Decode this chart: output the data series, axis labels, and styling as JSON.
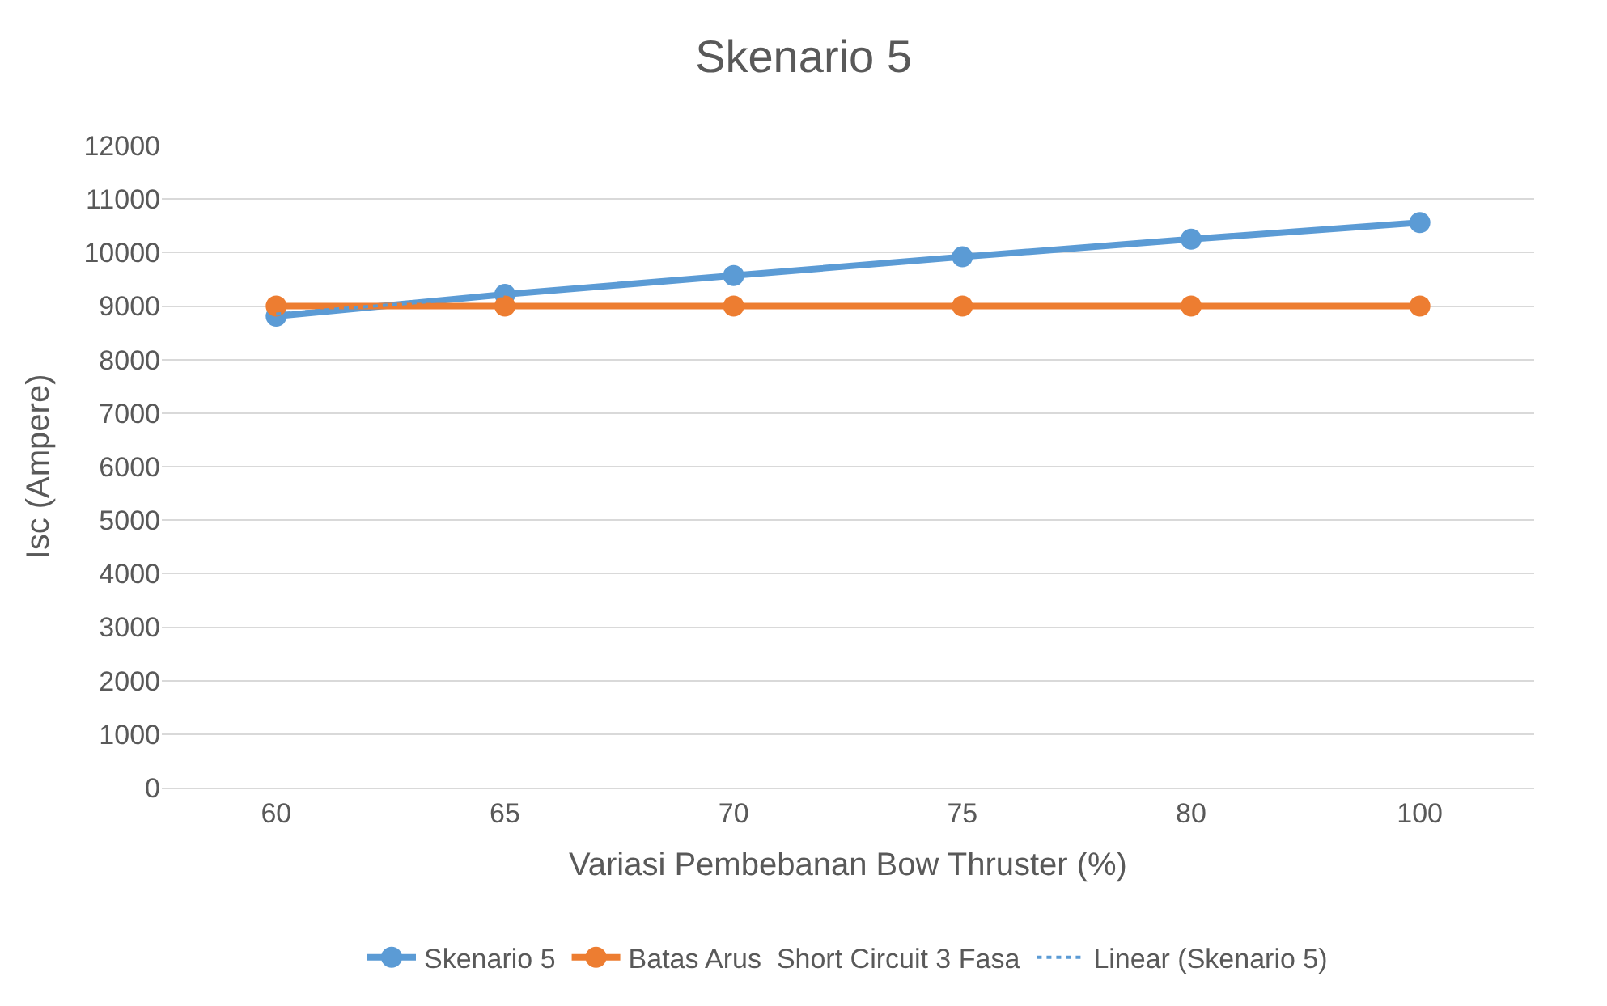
{
  "chart_data": {
    "type": "line",
    "title": "Skenario 5",
    "xlabel": "Variasi Pembebanan Bow Thruster (%)",
    "ylabel": "Isc (Ampere)",
    "categories": [
      "60",
      "65",
      "70",
      "75",
      "80",
      "100"
    ],
    "series": [
      {
        "name": "Skenario 5",
        "color": "#5b9bd5",
        "values": [
          8810,
          9220,
          9570,
          9920,
          10250,
          10560
        ],
        "marker": "circle",
        "line_style": "solid"
      },
      {
        "name": "Batas Arus  Short Circuit 3 Fasa",
        "color": "#ed7d31",
        "values": [
          9000,
          9000,
          9000,
          9000,
          9000,
          9000
        ],
        "marker": "circle",
        "line_style": "solid"
      },
      {
        "name": "Linear (Skenario 5)",
        "color": "#5b9bd5",
        "values": [
          8850,
          9200,
          null,
          null,
          null,
          null
        ],
        "marker": "none",
        "line_style": "dotted"
      }
    ],
    "ylim": [
      0,
      12000
    ],
    "yticks": [
      0,
      1000,
      2000,
      3000,
      4000,
      5000,
      6000,
      7000,
      8000,
      9000,
      10000,
      11000,
      12000
    ],
    "grid": "y",
    "legend": "bottom"
  }
}
